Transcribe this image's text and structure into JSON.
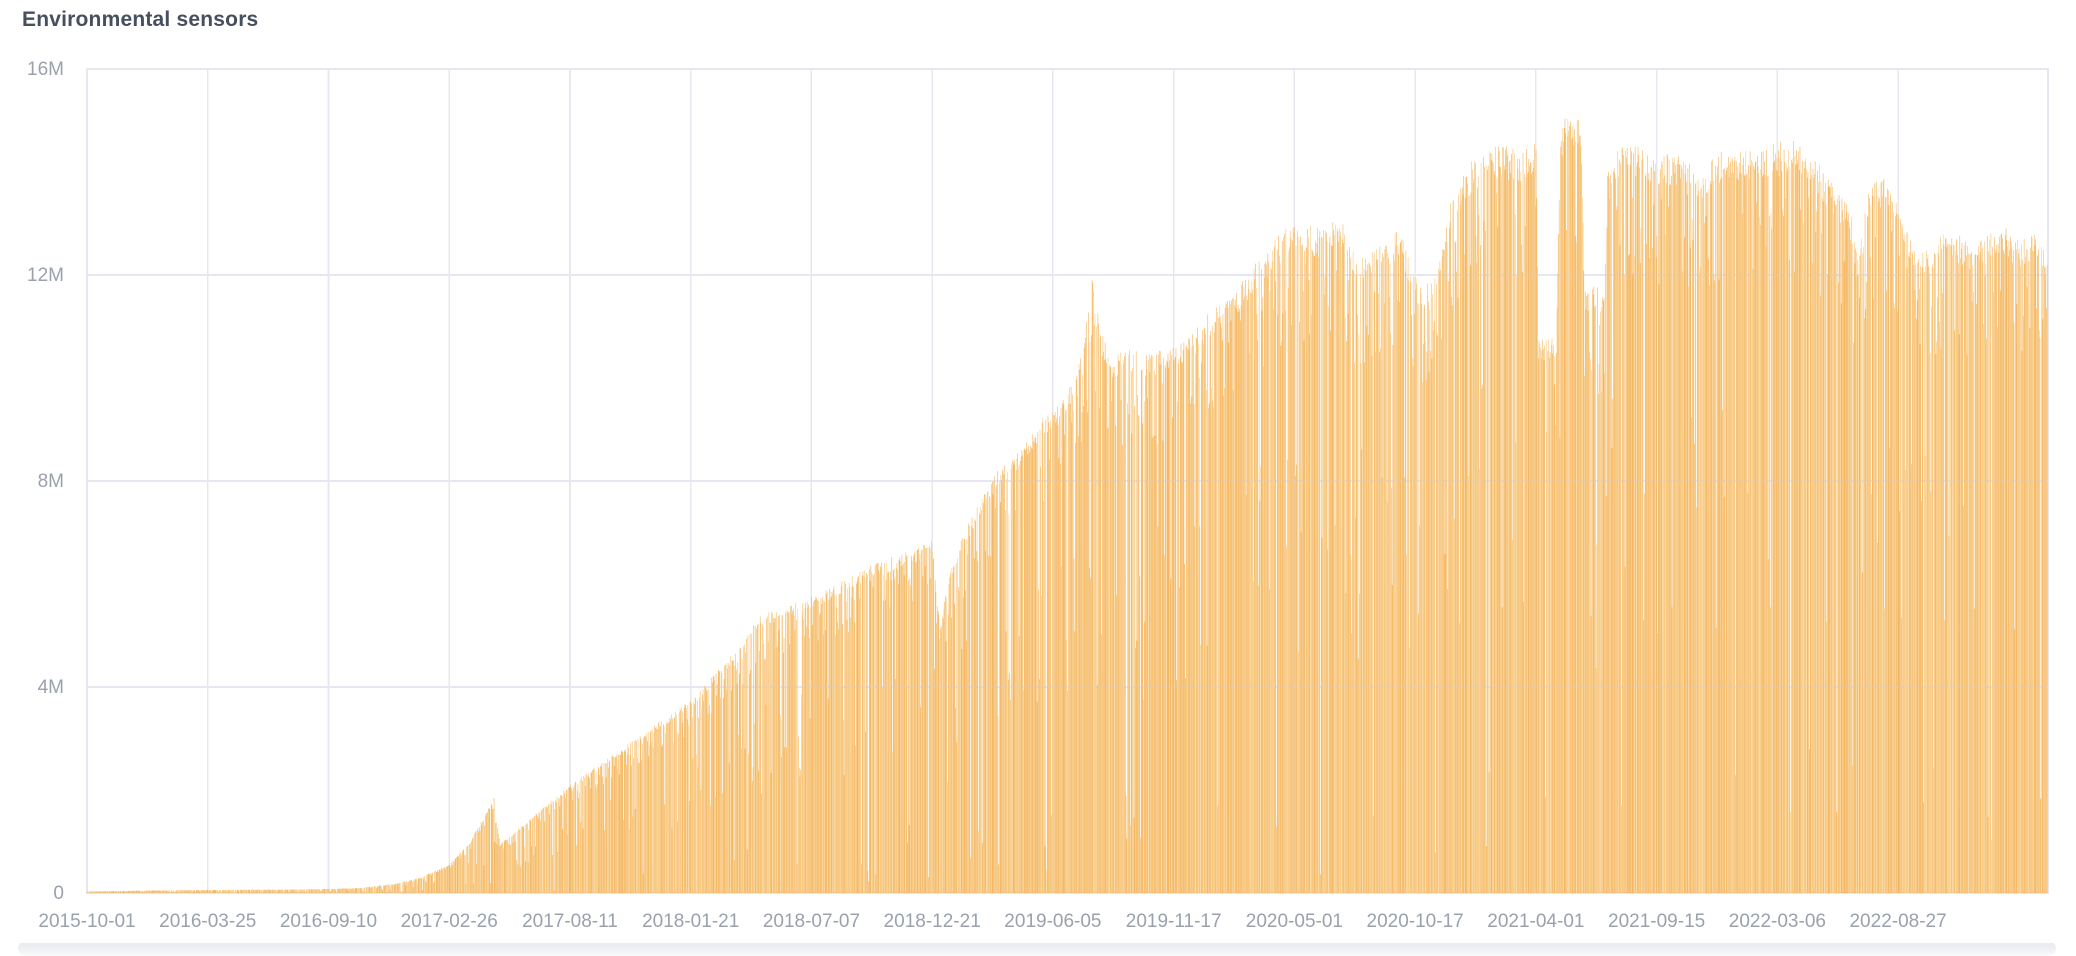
{
  "header": {
    "title": "Environmental sensors"
  },
  "colors": {
    "bar_base": "#f6ba5e",
    "bar_palette": [
      "#f2a944",
      "#f5b355",
      "#f7bd66",
      "#f9c879",
      "#f4af4c"
    ],
    "grid": "#e7e7f2",
    "axis_label": "#9ba1ac",
    "title": "#454f5f",
    "background": "#ffffff"
  },
  "chart_data": {
    "type": "bar",
    "title": "Environmental sensors",
    "xlabel": "",
    "ylabel": "",
    "legend": "none",
    "grid": "on",
    "plot_background": "#ffffff",
    "ylim_readings": [
      0,
      16000000
    ],
    "y_ticks": {
      "values_millions": [
        0,
        4,
        8,
        12,
        16
      ],
      "labels": [
        "0",
        "4M",
        "8M",
        "12M",
        "16M"
      ]
    },
    "x_tick_labels": [
      "2015-10-01",
      "2016-03-25",
      "2016-09-10",
      "2017-02-26",
      "2017-08-11",
      "2018-01-21",
      "2018-07-07",
      "2018-12-21",
      "2019-06-05",
      "2019-11-17",
      "2020-05-01",
      "2020-10-17",
      "2021-04-01",
      "2021-09-15",
      "2022-03-06",
      "2022-08-27"
    ],
    "start_date": "2015-10-01",
    "days_total": 2712,
    "bar_granularity": "one bar per day",
    "upper_envelope_millions": [
      [
        0,
        0.03
      ],
      [
        87,
        0.05
      ],
      [
        170,
        0.06
      ],
      [
        295,
        0.07
      ],
      [
        336,
        0.08
      ],
      [
        378,
        0.1
      ],
      [
        426,
        0.18
      ],
      [
        461,
        0.3
      ],
      [
        501,
        0.55
      ],
      [
        530,
        1.0
      ],
      [
        563,
        1.85
      ],
      [
        571,
        0.95
      ],
      [
        613,
        1.45
      ],
      [
        668,
        2.1
      ],
      [
        723,
        2.65
      ],
      [
        779,
        3.2
      ],
      [
        835,
        3.75
      ],
      [
        889,
        4.6
      ],
      [
        931,
        5.4
      ],
      [
        972,
        5.6
      ],
      [
        1001,
        5.75
      ],
      [
        1055,
        6.15
      ],
      [
        1097,
        6.45
      ],
      [
        1138,
        6.65
      ],
      [
        1169,
        6.85
      ],
      [
        1180,
        5.2
      ],
      [
        1194,
        6.4
      ],
      [
        1221,
        7.25
      ],
      [
        1263,
        8.3
      ],
      [
        1290,
        8.6
      ],
      [
        1318,
        9.2
      ],
      [
        1336,
        9.35
      ],
      [
        1359,
        9.9
      ],
      [
        1380,
        10.9
      ],
      [
        1391,
        12.0
      ],
      [
        1401,
        11.0
      ],
      [
        1415,
        10.4
      ],
      [
        1442,
        10.6
      ],
      [
        1470,
        10.5
      ],
      [
        1503,
        10.65
      ],
      [
        1525,
        10.8
      ],
      [
        1553,
        11.3
      ],
      [
        1588,
        11.7
      ],
      [
        1622,
        12.35
      ],
      [
        1669,
        13.1
      ],
      [
        1705,
        12.9
      ],
      [
        1733,
        13.2
      ],
      [
        1761,
        12.3
      ],
      [
        1788,
        12.6
      ],
      [
        1816,
        12.9
      ],
      [
        1837,
        12.0
      ],
      [
        1858,
        11.8
      ],
      [
        1886,
        13.5
      ],
      [
        1913,
        14.2
      ],
      [
        1955,
        14.55
      ],
      [
        1982,
        14.4
      ],
      [
        2004,
        14.6
      ],
      [
        2008,
        10.8
      ],
      [
        2032,
        10.8
      ],
      [
        2037,
        14.9
      ],
      [
        2051,
        15.3
      ],
      [
        2066,
        15.0
      ],
      [
        2071,
        11.8
      ],
      [
        2098,
        11.8
      ],
      [
        2104,
        14.4
      ],
      [
        2134,
        14.6
      ],
      [
        2171,
        14.4
      ],
      [
        2203,
        14.3
      ],
      [
        2231,
        14.0
      ],
      [
        2258,
        14.4
      ],
      [
        2293,
        14.5
      ],
      [
        2337,
        14.55
      ],
      [
        2355,
        14.7
      ],
      [
        2383,
        14.4
      ],
      [
        2410,
        13.9
      ],
      [
        2438,
        13.3
      ],
      [
        2449,
        12.4
      ],
      [
        2466,
        13.8
      ],
      [
        2493,
        13.9
      ],
      [
        2504,
        13.5
      ],
      [
        2521,
        12.8
      ],
      [
        2541,
        12.5
      ],
      [
        2576,
        12.9
      ],
      [
        2611,
        12.6
      ],
      [
        2645,
        13.0
      ],
      [
        2673,
        12.7
      ],
      [
        2701,
        12.9
      ],
      [
        2711,
        12.4
      ]
    ],
    "notable_features": [
      "values near zero from 2015-10 through late 2016",
      "sharp triangular spike to ~1.85M in April 2017 followed by cliff drop to ~0.95M",
      "steady climb through 2018 to ~7M, steep rise early 2019 to ~9.5M",
      "short spike touching ~12M mid-2019",
      "plateau ~10.5-13M through 2020 with scattered deep daily dips",
      "peak ~15.3M in May 2021 flanked by two deep notches (~10.8M and ~11.8M)",
      "high plateau ~14-14.7M late 2021 through early 2022",
      "gradual decline to ~12.4-13M by early 2023"
    ]
  }
}
